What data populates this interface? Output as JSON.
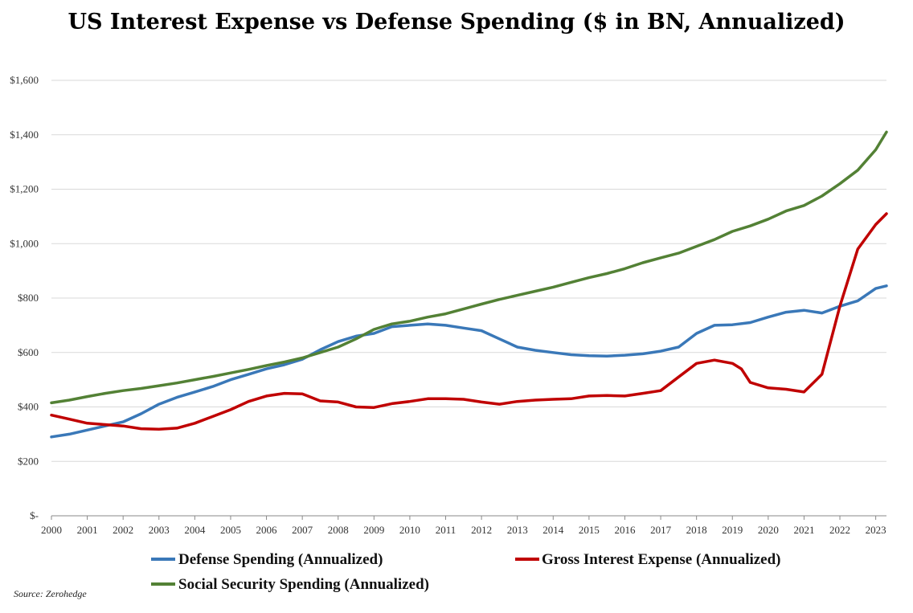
{
  "chart_data": {
    "type": "line",
    "title": "US Interest Expense vs Defense Spending ($ in BN, Annualized)",
    "xlabel": "",
    "ylabel": "",
    "x_ticks": [
      "2000",
      "2001",
      "2002",
      "2003",
      "2004",
      "2005",
      "2006",
      "2007",
      "2008",
      "2009",
      "2010",
      "2011",
      "2012",
      "2013",
      "2014",
      "2015",
      "2016",
      "2017",
      "2018",
      "2019",
      "2020",
      "2021",
      "2022",
      "2023"
    ],
    "xlim": [
      2000,
      2023.3
    ],
    "ylim": [
      0,
      1600
    ],
    "y_ticks": [
      {
        "value": 0,
        "label": "$-"
      },
      {
        "value": 200,
        "label": "$200"
      },
      {
        "value": 400,
        "label": "$400"
      },
      {
        "value": 600,
        "label": "$600"
      },
      {
        "value": 800,
        "label": "$800"
      },
      {
        "value": 1000,
        "label": "$1,000"
      },
      {
        "value": 1200,
        "label": "$1,200"
      },
      {
        "value": 1400,
        "label": "$1,400"
      },
      {
        "value": 1600,
        "label": "$1,600"
      }
    ],
    "grid": true,
    "legend_position": "bottom",
    "series": [
      {
        "name": "Defense Spending (Annualized)",
        "color": "#3a78b8",
        "x": [
          2000,
          2000.5,
          2001,
          2001.5,
          2002,
          2002.5,
          2003,
          2003.5,
          2004,
          2004.5,
          2005,
          2005.5,
          2006,
          2006.5,
          2007,
          2007.5,
          2008,
          2008.5,
          2009,
          2009.5,
          2010,
          2010.5,
          2011,
          2011.5,
          2012,
          2012.5,
          2013,
          2013.5,
          2014,
          2014.5,
          2015,
          2015.5,
          2016,
          2016.5,
          2017,
          2017.5,
          2018,
          2018.5,
          2019,
          2019.5,
          2020,
          2020.5,
          2021,
          2021.5,
          2022,
          2022.5,
          2023,
          2023.3
        ],
        "values": [
          290,
          300,
          315,
          330,
          345,
          375,
          410,
          435,
          455,
          475,
          500,
          520,
          540,
          555,
          575,
          610,
          640,
          660,
          670,
          695,
          700,
          705,
          700,
          690,
          680,
          650,
          620,
          608,
          600,
          592,
          588,
          587,
          590,
          595,
          605,
          620,
          670,
          700,
          702,
          710,
          730,
          748,
          755,
          745,
          770,
          790,
          835,
          845
        ]
      },
      {
        "name": "Gross Interest Expense (Annualized)",
        "color": "#c00000",
        "x": [
          2000,
          2000.5,
          2001,
          2001.5,
          2002,
          2002.5,
          2003,
          2003.5,
          2004,
          2004.5,
          2005,
          2005.5,
          2006,
          2006.5,
          2007,
          2007.5,
          2008,
          2008.5,
          2009,
          2009.5,
          2010,
          2010.5,
          2011,
          2011.5,
          2012,
          2012.5,
          2013,
          2013.5,
          2014,
          2014.5,
          2015,
          2015.5,
          2016,
          2016.5,
          2017,
          2017.5,
          2018,
          2018.5,
          2019,
          2019.25,
          2019.5,
          2020,
          2020.5,
          2021,
          2021.5,
          2022,
          2022.5,
          2023,
          2023.3
        ],
        "values": [
          370,
          355,
          340,
          335,
          330,
          320,
          318,
          322,
          340,
          365,
          390,
          420,
          440,
          450,
          448,
          422,
          418,
          400,
          398,
          412,
          420,
          430,
          430,
          428,
          418,
          410,
          420,
          425,
          428,
          430,
          440,
          442,
          440,
          450,
          460,
          510,
          560,
          572,
          560,
          540,
          490,
          470,
          465,
          455,
          520,
          770,
          980,
          1070,
          1110
        ]
      },
      {
        "name": "Social Security Spending (Annualized)",
        "color": "#538135",
        "x": [
          2000,
          2000.5,
          2001,
          2001.5,
          2002,
          2002.5,
          2003,
          2003.5,
          2004,
          2004.5,
          2005,
          2005.5,
          2006,
          2006.5,
          2007,
          2007.5,
          2008,
          2008.5,
          2009,
          2009.5,
          2010,
          2010.5,
          2011,
          2011.5,
          2012,
          2012.5,
          2013,
          2013.5,
          2014,
          2014.5,
          2015,
          2015.5,
          2016,
          2016.5,
          2017,
          2017.5,
          2018,
          2018.5,
          2019,
          2019.5,
          2020,
          2020.5,
          2021,
          2021.5,
          2022,
          2022.5,
          2023,
          2023.3
        ],
        "values": [
          415,
          425,
          438,
          450,
          460,
          468,
          478,
          488,
          500,
          512,
          525,
          538,
          552,
          565,
          580,
          600,
          620,
          650,
          685,
          705,
          715,
          730,
          742,
          760,
          778,
          795,
          810,
          825,
          840,
          858,
          875,
          890,
          908,
          930,
          948,
          965,
          990,
          1015,
          1045,
          1065,
          1090,
          1120,
          1140,
          1175,
          1220,
          1270,
          1345,
          1410
        ]
      }
    ]
  },
  "legend": {
    "defense": "Defense Spending (Annualized)",
    "interest": "Gross Interest Expense (Annualized)",
    "social": "Social Security Spending (Annualized)"
  },
  "source": "Source: Zerohedge"
}
